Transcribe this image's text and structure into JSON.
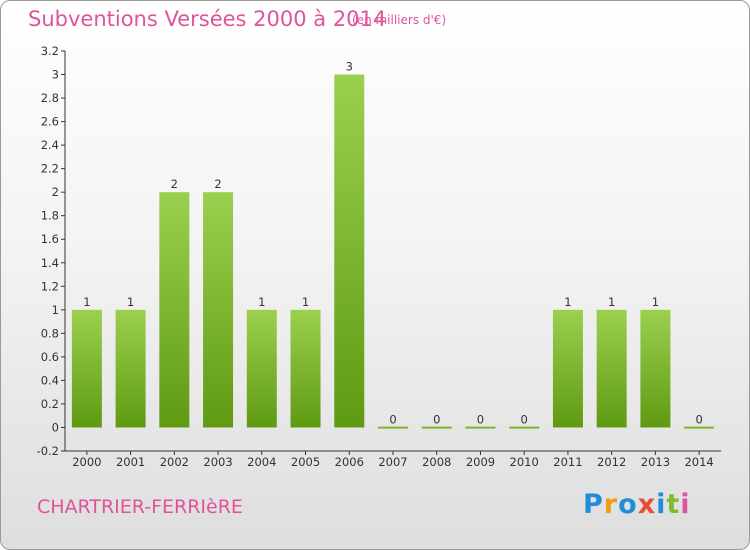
{
  "title": "Subventions Versées 2000 à 2014",
  "subtitle": "(en milliers d'€)",
  "commune": "CHARTRIER-FERRIèRE",
  "logo": {
    "text": "Proxiti",
    "letter_colors": [
      "#1e8ed8",
      "#f39c12",
      "#1e8ed8",
      "#e74c3c",
      "#1e8ed8",
      "#7dbb2f",
      "#e0539b"
    ]
  },
  "colors": {
    "title": "#e0539b",
    "bar_light": "#9bd04f",
    "bar_dark": "#5f9a12",
    "axis": "#333333"
  },
  "chart_data": {
    "type": "bar",
    "title": "Subventions Versées 2000 à 2014",
    "subtitle": "(en milliers d'€)",
    "categories": [
      "2000",
      "2001",
      "2002",
      "2003",
      "2004",
      "2005",
      "2006",
      "2007",
      "2008",
      "2009",
      "2010",
      "2011",
      "2012",
      "2013",
      "2014"
    ],
    "values": [
      1,
      1,
      2,
      2,
      1,
      1,
      3,
      0,
      0,
      0,
      0,
      1,
      1,
      1,
      0
    ],
    "data_labels": [
      "1",
      "1",
      "2",
      "2",
      "1",
      "1",
      "3",
      "0",
      "0",
      "0",
      "0",
      "1",
      "1",
      "1",
      "0"
    ],
    "ylim": [
      -0.2,
      3.2
    ],
    "yticks": [
      -0.2,
      0,
      0.2,
      0.4,
      0.6,
      0.8,
      1,
      1.2,
      1.4,
      1.6,
      1.8,
      2,
      2.2,
      2.4,
      2.6,
      2.8,
      3,
      3.2
    ],
    "ytick_labels": [
      "-0.2",
      "0",
      "0.2",
      "0.4",
      "0.6",
      "0.8",
      "1",
      "1.2",
      "1.4",
      "1.6",
      "1.8",
      "2",
      "2.2",
      "2.4",
      "2.6",
      "2.8",
      "3",
      "3.2"
    ],
    "grid": false,
    "legend": "none"
  }
}
